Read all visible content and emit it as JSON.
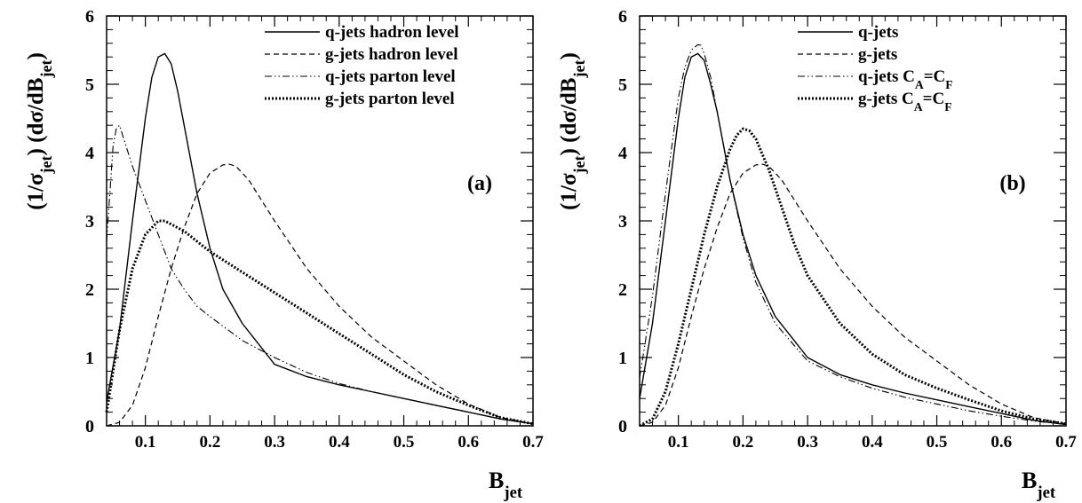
{
  "chart_data": [
    {
      "type": "line",
      "panel_label": "(a)",
      "xlabel": "B",
      "xlabel_sub": "jet",
      "ylabel_parts": [
        "(1/σ",
        "jet",
        ") (dσ/dB",
        "jet",
        ")"
      ],
      "xlim": [
        0.04,
        0.7
      ],
      "ylim": [
        0,
        6
      ],
      "xticks": [
        0.1,
        0.2,
        0.3,
        0.4,
        0.5,
        0.6,
        0.7
      ],
      "xtick_labels": [
        "0.1",
        "0.2",
        "0.3",
        "0.4",
        "0.5",
        "0.6",
        "0.7"
      ],
      "yticks": [
        0,
        1,
        2,
        3,
        4,
        5,
        6
      ],
      "ytick_labels": [
        "0",
        "1",
        "2",
        "3",
        "4",
        "5",
        "6"
      ],
      "legend": "top-right",
      "grid": false,
      "series": [
        {
          "name": "q-jets hadron level",
          "style": "solid",
          "x": [
            0.04,
            0.06,
            0.08,
            0.1,
            0.11,
            0.12,
            0.13,
            0.14,
            0.15,
            0.16,
            0.18,
            0.2,
            0.22,
            0.25,
            0.3,
            0.35,
            0.4,
            0.45,
            0.5,
            0.55,
            0.6,
            0.65,
            0.7
          ],
          "y": [
            0.35,
            1.4,
            3.0,
            4.5,
            5.1,
            5.4,
            5.45,
            5.3,
            4.9,
            4.4,
            3.4,
            2.6,
            2.0,
            1.5,
            0.9,
            0.72,
            0.6,
            0.5,
            0.4,
            0.3,
            0.2,
            0.1,
            0.03
          ]
        },
        {
          "name": "g-jets hadron level",
          "style": "dashed",
          "x": [
            0.04,
            0.06,
            0.08,
            0.1,
            0.12,
            0.14,
            0.16,
            0.18,
            0.2,
            0.22,
            0.23,
            0.24,
            0.26,
            0.28,
            0.3,
            0.35,
            0.4,
            0.45,
            0.5,
            0.55,
            0.6,
            0.65,
            0.7
          ],
          "y": [
            0.0,
            0.05,
            0.3,
            0.85,
            1.6,
            2.3,
            2.9,
            3.4,
            3.7,
            3.82,
            3.83,
            3.8,
            3.6,
            3.3,
            3.0,
            2.3,
            1.75,
            1.3,
            0.95,
            0.6,
            0.32,
            0.12,
            0.03
          ]
        },
        {
          "name": "q-jets parton level",
          "style": "dashdotdot",
          "x": [
            0.04,
            0.05,
            0.055,
            0.06,
            0.07,
            0.08,
            0.1,
            0.12,
            0.14,
            0.16,
            0.18,
            0.2,
            0.25,
            0.3,
            0.35,
            0.4,
            0.45,
            0.5,
            0.55,
            0.6,
            0.65,
            0.7
          ],
          "y": [
            2.7,
            4.1,
            4.35,
            4.4,
            4.1,
            3.8,
            3.3,
            2.8,
            2.3,
            2.0,
            1.75,
            1.6,
            1.25,
            1.0,
            0.78,
            0.62,
            0.5,
            0.4,
            0.3,
            0.2,
            0.1,
            0.03
          ]
        },
        {
          "name": "g-jets parton level",
          "style": "dotted",
          "x": [
            0.04,
            0.05,
            0.06,
            0.08,
            0.1,
            0.12,
            0.13,
            0.14,
            0.16,
            0.18,
            0.2,
            0.25,
            0.3,
            0.35,
            0.4,
            0.45,
            0.5,
            0.55,
            0.6,
            0.65,
            0.7
          ],
          "y": [
            0.2,
            0.8,
            1.4,
            2.3,
            2.8,
            3.0,
            3.0,
            2.95,
            2.85,
            2.7,
            2.55,
            2.25,
            1.95,
            1.65,
            1.35,
            1.05,
            0.75,
            0.5,
            0.3,
            0.12,
            0.03
          ]
        }
      ]
    },
    {
      "type": "line",
      "panel_label": "(b)",
      "xlabel": "B",
      "xlabel_sub": "jet",
      "ylabel_parts": [
        "(1/σ",
        "jet",
        ") (dσ/dB",
        "jet",
        ")"
      ],
      "xlim": [
        0.04,
        0.7
      ],
      "ylim": [
        0,
        6
      ],
      "xticks": [
        0.1,
        0.2,
        0.3,
        0.4,
        0.5,
        0.6,
        0.7
      ],
      "xtick_labels": [
        "0.1",
        "0.2",
        "0.3",
        "0.4",
        "0.5",
        "0.6",
        "0.7"
      ],
      "yticks": [
        0,
        1,
        2,
        3,
        4,
        5,
        6
      ],
      "ytick_labels": [
        "0",
        "1",
        "2",
        "3",
        "4",
        "5",
        "6"
      ],
      "legend": "top-right",
      "grid": false,
      "series": [
        {
          "name": "q-jets",
          "style": "solid",
          "x": [
            0.04,
            0.06,
            0.08,
            0.1,
            0.11,
            0.12,
            0.13,
            0.14,
            0.15,
            0.16,
            0.18,
            0.2,
            0.22,
            0.25,
            0.3,
            0.35,
            0.4,
            0.45,
            0.5,
            0.55,
            0.6,
            0.65,
            0.7
          ],
          "y": [
            0.4,
            1.5,
            3.0,
            4.5,
            5.1,
            5.4,
            5.45,
            5.35,
            5.0,
            4.6,
            3.6,
            2.8,
            2.2,
            1.6,
            1.0,
            0.75,
            0.6,
            0.48,
            0.38,
            0.28,
            0.18,
            0.08,
            0.02
          ]
        },
        {
          "name": "g-jets",
          "style": "dashed",
          "x": [
            0.04,
            0.06,
            0.08,
            0.1,
            0.12,
            0.14,
            0.16,
            0.18,
            0.2,
            0.22,
            0.23,
            0.24,
            0.26,
            0.28,
            0.3,
            0.35,
            0.4,
            0.45,
            0.5,
            0.55,
            0.6,
            0.65,
            0.7
          ],
          "y": [
            0.0,
            0.05,
            0.3,
            0.85,
            1.6,
            2.3,
            2.9,
            3.4,
            3.7,
            3.82,
            3.83,
            3.8,
            3.6,
            3.3,
            3.0,
            2.3,
            1.75,
            1.3,
            0.95,
            0.6,
            0.32,
            0.12,
            0.03
          ]
        },
        {
          "name": "q-jets C_A=C_F",
          "name_parts": [
            "q-jets C",
            "A",
            "=C",
            "F"
          ],
          "style": "dashdotdot",
          "x": [
            0.04,
            0.06,
            0.08,
            0.1,
            0.11,
            0.12,
            0.13,
            0.135,
            0.14,
            0.15,
            0.16,
            0.18,
            0.2,
            0.22,
            0.25,
            0.3,
            0.35,
            0.4,
            0.45,
            0.5,
            0.55,
            0.6,
            0.65,
            0.7
          ],
          "y": [
            0.7,
            1.9,
            3.4,
            4.8,
            5.25,
            5.5,
            5.58,
            5.57,
            5.45,
            5.1,
            4.6,
            3.6,
            2.75,
            2.1,
            1.5,
            0.95,
            0.72,
            0.55,
            0.42,
            0.32,
            0.22,
            0.14,
            0.07,
            0.02
          ]
        },
        {
          "name": "g-jets C_A=C_F",
          "name_parts": [
            "g-jets C",
            "A",
            "=C",
            "F"
          ],
          "style": "dotted",
          "x": [
            0.04,
            0.06,
            0.08,
            0.1,
            0.12,
            0.14,
            0.16,
            0.18,
            0.19,
            0.2,
            0.21,
            0.22,
            0.24,
            0.26,
            0.28,
            0.3,
            0.35,
            0.4,
            0.45,
            0.5,
            0.55,
            0.6,
            0.65,
            0.7
          ],
          "y": [
            0.0,
            0.1,
            0.5,
            1.2,
            2.0,
            2.8,
            3.5,
            4.05,
            4.25,
            4.35,
            4.32,
            4.2,
            3.75,
            3.2,
            2.65,
            2.2,
            1.5,
            1.05,
            0.75,
            0.55,
            0.38,
            0.22,
            0.1,
            0.03
          ]
        }
      ]
    }
  ]
}
